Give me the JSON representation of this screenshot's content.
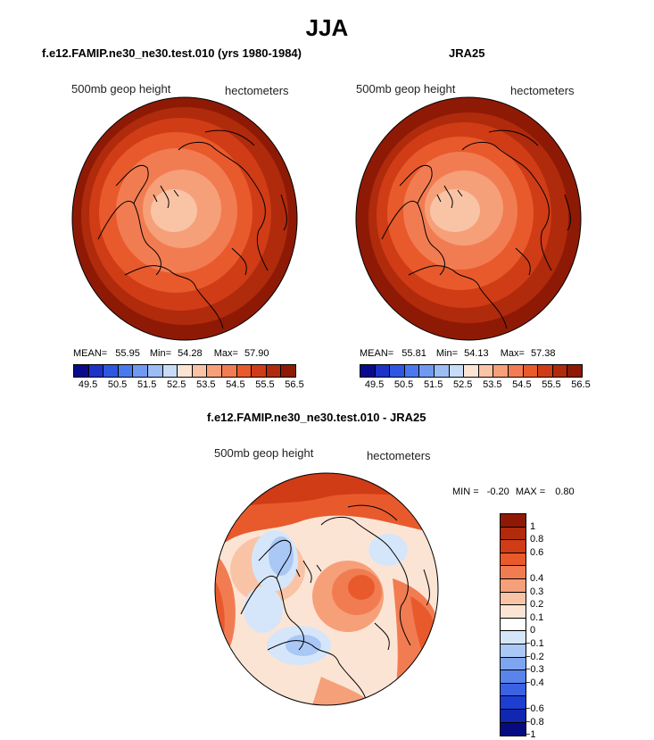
{
  "title": "JJA",
  "units_label": "hectometers",
  "variable_label": "500mb geop height",
  "panels": [
    {
      "title": "f.e12.FAMIP.ne30_ne30.test.010 (yrs 1980-1984)",
      "stats": {
        "mean_label": "MEAN=",
        "mean": "55.95",
        "min_label": "Min=",
        "min": "54.28",
        "max_label": "Max=",
        "max": "57.90"
      }
    },
    {
      "title": "JRA25",
      "stats": {
        "mean_label": "MEAN=",
        "mean": "55.81",
        "min_label": "Min=",
        "min": "54.13",
        "max_label": "Max=",
        "max": "57.38"
      }
    },
    {
      "title": "f.e12.FAMIP.ne30_ne30.test.010 - JRA25",
      "stats": {
        "min_label": "MIN =",
        "min": "-0.20",
        "max_label": "MAX =",
        "max": "0.80"
      }
    }
  ],
  "colors": {
    "seq": [
      "#0a0a8c",
      "#1e32c8",
      "#2e56e0",
      "#4a78ee",
      "#7099f2",
      "#9cbcf4",
      "#c8dcf8",
      "#fce4d4",
      "#f9c4a6",
      "#f6a07a",
      "#f27c52",
      "#e85a2c",
      "#d03c16",
      "#b02a0c",
      "#8e1a06"
    ],
    "div": [
      "#8e1a06",
      "#b02a0c",
      "#d03c16",
      "#e85a2c",
      "#f27c52",
      "#f6a07a",
      "#f9c4a6",
      "#fce4d4",
      "#ffffff",
      "#d6e6fa",
      "#a9c8f6",
      "#7ea6f0",
      "#5a84ea",
      "#3a62e2",
      "#1c3ed2",
      "#1028b0",
      "#060c80"
    ],
    "coast": "#000000"
  },
  "chart_data": [
    {
      "type": "heatmap",
      "title": "f.e12.FAMIP.ne30_ne30.test.010 (yrs 1980-1984)",
      "projection": "north polar stereographic",
      "variable": "500mb geop height",
      "units": "hectometers",
      "mean": 55.95,
      "min": 54.28,
      "max": 57.9,
      "levels": [
        49.5,
        50,
        50.5,
        51,
        51.5,
        52,
        52.5,
        53,
        53.5,
        54,
        54.5,
        55,
        55.5,
        56,
        56.5
      ],
      "tick_labels": [
        "49.5",
        "50.5",
        "51.5",
        "52.5",
        "53.5",
        "54.5",
        "55.5",
        "56.5"
      ]
    },
    {
      "type": "heatmap",
      "title": "JRA25",
      "projection": "north polar stereographic",
      "variable": "500mb geop height",
      "units": "hectometers",
      "mean": 55.81,
      "min": 54.13,
      "max": 57.38,
      "levels": [
        49.5,
        50,
        50.5,
        51,
        51.5,
        52,
        52.5,
        53,
        53.5,
        54,
        54.5,
        55,
        55.5,
        56,
        56.5
      ],
      "tick_labels": [
        "49.5",
        "50.5",
        "51.5",
        "52.5",
        "53.5",
        "54.5",
        "55.5",
        "56.5"
      ]
    },
    {
      "type": "heatmap",
      "title": "f.e12.FAMIP.ne30_ne30.test.010 - JRA25",
      "projection": "north polar stereographic",
      "variable": "500mb geop height",
      "units": "hectometers",
      "min": -0.2,
      "max": 0.8,
      "levels": [
        1,
        0.8,
        0.6,
        0.5,
        0.4,
        0.3,
        0.2,
        0.1,
        0,
        -0.1,
        -0.2,
        -0.3,
        -0.4,
        -0.5,
        -0.6,
        -0.8,
        -1
      ],
      "tick_labels": [
        "1",
        "0.8",
        "0.6",
        "0.4",
        "0.3",
        "0.2",
        "0.1",
        "0",
        "−0.1",
        "−0.2",
        "−0.3",
        "−0.4",
        "−0.6",
        "−0.8",
        "−1"
      ]
    }
  ]
}
